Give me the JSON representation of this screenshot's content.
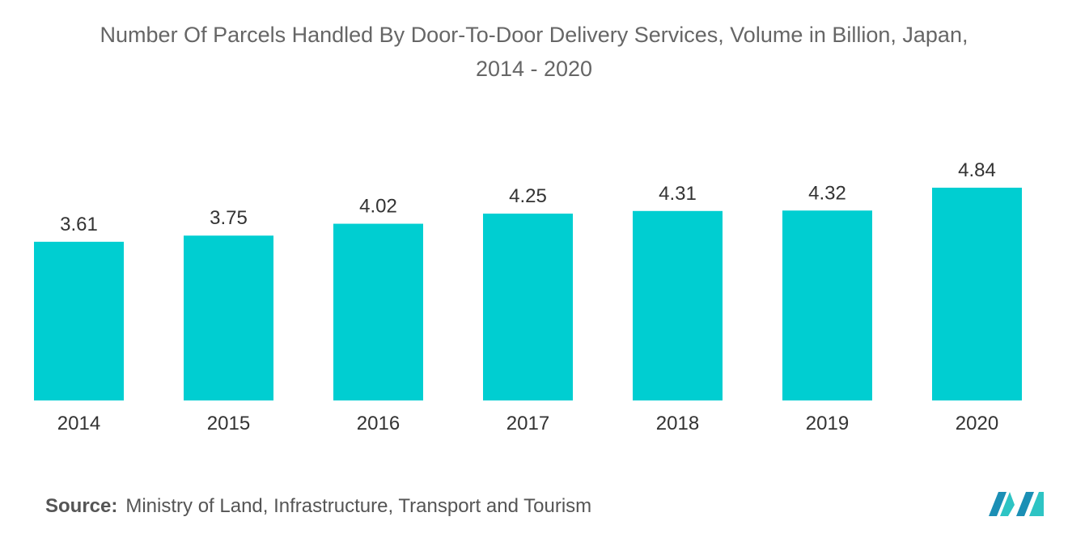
{
  "title_line1": "Number Of Parcels Handled By Door-To-Door Delivery Services, Volume in Billion, Japan,",
  "title_line2": "2014 - 2020",
  "source_label": "Source:",
  "source_text": "Ministry of Land, Infrastructure, Transport and Tourism",
  "colors": {
    "bar": "#00CED1",
    "text": "#555555",
    "axis": "#333333"
  },
  "chart_data": {
    "type": "bar",
    "categories": [
      "2014",
      "2015",
      "2016",
      "2017",
      "2018",
      "2019",
      "2020"
    ],
    "values": [
      3.61,
      3.75,
      4.02,
      4.25,
      4.31,
      4.32,
      4.84
    ],
    "value_labels": [
      "3.61",
      "3.75",
      "4.02",
      "4.25",
      "4.31",
      "4.32",
      "4.84"
    ],
    "xlabel": "",
    "ylabel": "",
    "ylim": [
      0,
      4.84
    ],
    "grid": false,
    "legend": "none"
  }
}
